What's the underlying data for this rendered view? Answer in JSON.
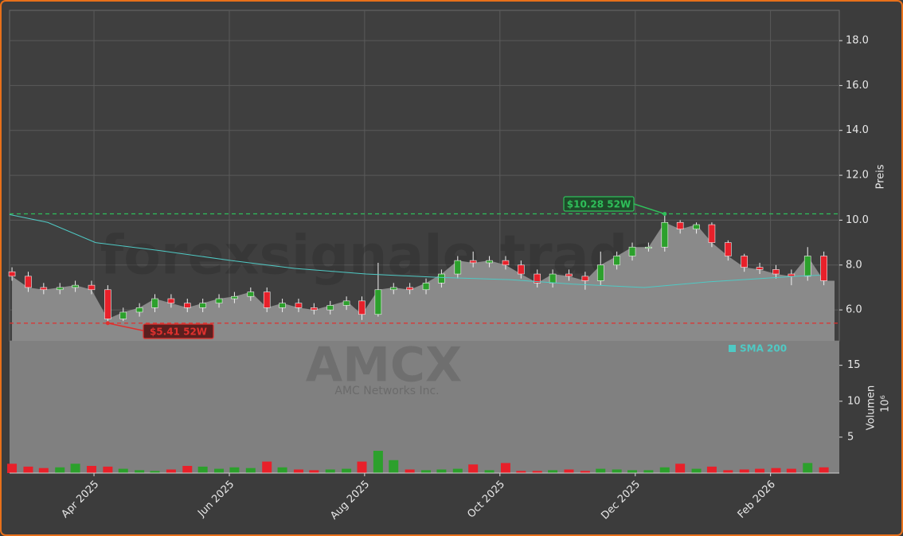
{
  "chart_data": {
    "type": "candlestick",
    "watermark": "forexsignale.trade",
    "symbol": "AMCX",
    "company": "AMC Networks Inc.",
    "y_label": "Preis",
    "up_color": "#2ca02c",
    "down_color": "#e8202a",
    "area_color": "#8a8a8a",
    "grid": true,
    "xlim": [
      2025.146,
      2026.168
    ],
    "xticks": [
      {
        "value": 2025.25,
        "label": "Apr 2025"
      },
      {
        "value": 2025.4167,
        "label": "Jun 2025"
      },
      {
        "value": 2025.5833,
        "label": "Aug 2025"
      },
      {
        "value": 2025.75,
        "label": "Oct 2025"
      },
      {
        "value": 2025.9167,
        "label": "Dec 2025"
      },
      {
        "value": 2026.0833,
        "label": "Feb 2026"
      }
    ],
    "ylim": [
      4.62,
      19.35
    ],
    "yticks": [
      {
        "value": 6,
        "label": "6.0"
      },
      {
        "value": 8,
        "label": "8.0"
      },
      {
        "value": 10,
        "label": "10.0"
      },
      {
        "value": 12,
        "label": "12.0"
      },
      {
        "value": 14,
        "label": "14.0"
      },
      {
        "value": 16,
        "label": "16.0"
      },
      {
        "value": 18,
        "label": "18.0"
      }
    ],
    "x": [
      2025.149,
      2025.169,
      2025.188,
      2025.208,
      2025.227,
      2025.247,
      2025.267,
      2025.286,
      2025.306,
      2025.325,
      2025.345,
      2025.365,
      2025.384,
      2025.404,
      2025.423,
      2025.443,
      2025.463,
      2025.482,
      2025.502,
      2025.521,
      2025.541,
      2025.561,
      2025.58,
      2025.6,
      2025.619,
      2025.639,
      2025.659,
      2025.678,
      2025.698,
      2025.717,
      2025.737,
      2025.757,
      2025.776,
      2025.796,
      2025.815,
      2025.835,
      2025.855,
      2025.874,
      2025.894,
      2025.913,
      2025.933,
      2025.953,
      2025.972,
      2025.992,
      2026.011,
      2026.031,
      2026.051,
      2026.07,
      2026.09,
      2026.109,
      2026.129,
      2026.149
    ],
    "open": [
      7.7,
      7.5,
      7.0,
      6.9,
      7.0,
      7.1,
      6.9,
      5.6,
      5.9,
      6.1,
      6.5,
      6.3,
      6.1,
      6.3,
      6.5,
      6.6,
      6.8,
      6.1,
      6.3,
      6.1,
      6.0,
      6.2,
      6.4,
      5.8,
      6.9,
      7.0,
      6.9,
      7.2,
      7.6,
      8.2,
      8.1,
      8.2,
      8.0,
      7.6,
      7.2,
      7.6,
      7.5,
      7.3,
      8.0,
      8.4,
      8.8,
      8.8,
      9.9,
      9.6,
      9.8,
      9.0,
      8.4,
      7.9,
      7.8,
      7.6,
      7.5,
      8.4
    ],
    "high": [
      7.9,
      7.7,
      7.2,
      7.2,
      7.3,
      7.3,
      7.1,
      6.1,
      6.3,
      6.7,
      6.7,
      6.5,
      6.5,
      6.7,
      6.8,
      7.0,
      7.0,
      6.5,
      6.5,
      6.3,
      6.4,
      6.6,
      6.6,
      8.1,
      7.2,
      7.2,
      7.4,
      7.8,
      8.4,
      8.6,
      8.4,
      8.4,
      8.2,
      7.8,
      7.8,
      7.8,
      7.7,
      8.6,
      8.6,
      9.0,
      9.0,
      10.28,
      10.0,
      9.9,
      9.9,
      9.1,
      8.5,
      8.1,
      8.0,
      7.8,
      8.8,
      8.6
    ],
    "low": [
      7.3,
      6.8,
      6.7,
      6.7,
      6.8,
      6.7,
      5.41,
      5.5,
      5.7,
      5.9,
      6.1,
      5.9,
      5.9,
      6.1,
      6.3,
      6.4,
      5.9,
      5.9,
      5.9,
      5.8,
      5.8,
      6.0,
      5.55,
      5.7,
      6.7,
      6.7,
      6.7,
      7.0,
      7.4,
      7.9,
      7.9,
      7.8,
      7.4,
      7.0,
      7.0,
      7.3,
      6.9,
      7.1,
      7.8,
      8.2,
      8.6,
      8.6,
      9.4,
      9.4,
      8.8,
      8.2,
      7.7,
      7.6,
      7.4,
      7.1,
      7.3,
      7.1
    ],
    "close": [
      7.5,
      7.0,
      6.9,
      7.0,
      7.1,
      6.9,
      5.6,
      5.9,
      6.1,
      6.5,
      6.3,
      6.1,
      6.3,
      6.5,
      6.6,
      6.8,
      6.1,
      6.3,
      6.1,
      6.0,
      6.2,
      6.4,
      5.8,
      6.9,
      7.0,
      6.9,
      7.2,
      7.6,
      8.2,
      8.1,
      8.2,
      8.0,
      7.6,
      7.2,
      7.6,
      7.5,
      7.3,
      8.0,
      8.4,
      8.8,
      8.8,
      9.9,
      9.6,
      9.8,
      9.0,
      8.4,
      7.9,
      7.8,
      7.6,
      7.5,
      8.4,
      7.3
    ],
    "sma": {
      "name": "SMA 200",
      "color": "#4fc9c4",
      "x": [
        2025.146,
        2025.193,
        2025.252,
        2025.33,
        2025.419,
        2025.497,
        2025.585,
        2025.674,
        2025.762,
        2025.84,
        2025.928,
        2026.007,
        2026.115,
        2026.144
      ],
      "values": [
        10.25,
        9.9,
        9.0,
        8.65,
        8.2,
        7.85,
        7.6,
        7.45,
        7.35,
        7.15,
        7.0,
        7.25,
        7.5,
        7.55
      ]
    },
    "volume": {
      "label": "Volumen",
      "unit": "10⁶",
      "ylim": [
        0,
        18.4
      ],
      "yticks": [
        5,
        10,
        15
      ],
      "values": [
        1.3,
        0.9,
        0.7,
        0.8,
        1.3,
        1.0,
        0.9,
        0.6,
        0.4,
        0.3,
        0.5,
        1.0,
        0.9,
        0.6,
        0.8,
        0.7,
        1.6,
        0.8,
        0.5,
        0.4,
        0.5,
        0.6,
        1.6,
        3.1,
        1.8,
        0.5,
        0.4,
        0.5,
        0.6,
        1.2,
        0.4,
        1.4,
        0.3,
        0.3,
        0.4,
        0.5,
        0.3,
        0.6,
        0.5,
        0.4,
        0.4,
        0.8,
        1.3,
        0.6,
        0.9,
        0.4,
        0.5,
        0.6,
        0.7,
        0.6,
        1.4,
        0.8
      ]
    },
    "annotations": [
      {
        "label": "$10.28 52W",
        "value": 10.28,
        "x": 2025.953,
        "color": "#2fbf5a",
        "fill": "#1f4a2a"
      },
      {
        "label": "$5.41 52W",
        "value": 5.41,
        "x": 2025.267,
        "color": "#e0302e",
        "fill": "#5a1f1f"
      }
    ]
  }
}
